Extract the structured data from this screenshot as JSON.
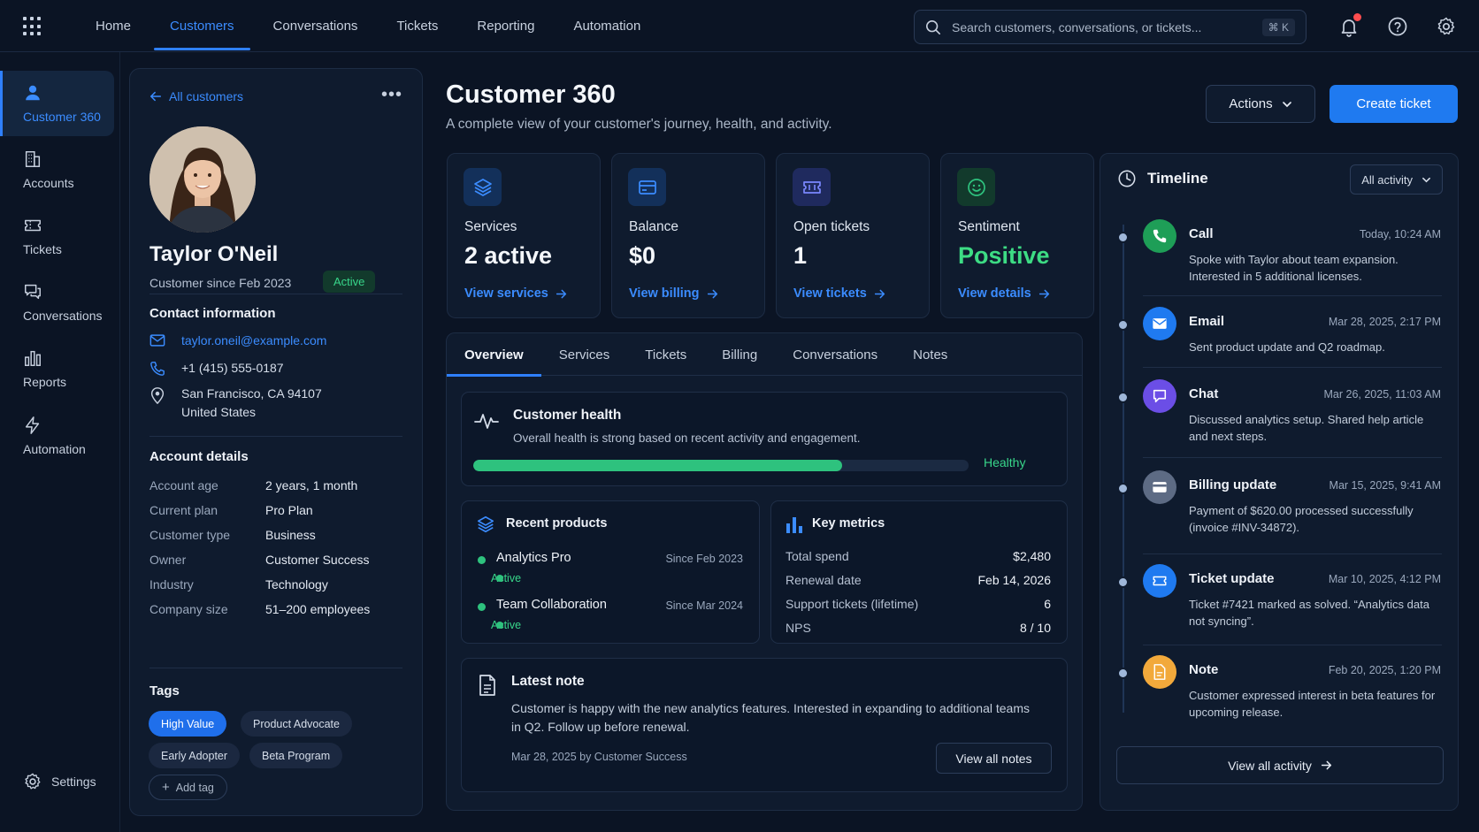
{
  "topnav": {
    "items": [
      "Home",
      "Customers",
      "Conversations",
      "Tickets",
      "Reporting",
      "Automation"
    ],
    "active": "Customers"
  },
  "search": {
    "placeholder": "Search customers, conversations, or tickets...",
    "shortcut": "⌘ K"
  },
  "rail": {
    "items": [
      {
        "label": "Customer 360",
        "icon": "user-icon"
      },
      {
        "label": "Accounts",
        "icon": "building-icon"
      },
      {
        "label": "Tickets",
        "icon": "ticket-icon"
      },
      {
        "label": "Conversations",
        "icon": "chat-icon"
      },
      {
        "label": "Reports",
        "icon": "bar-chart-icon"
      },
      {
        "label": "Automation",
        "icon": "lightning-icon"
      }
    ],
    "settings": "Settings"
  },
  "profile": {
    "back": "All customers",
    "name": "Taylor O'Neil",
    "since": "Customer since Feb 2023",
    "status": "Active",
    "contact_title": "Contact information",
    "email": "taylor.oneil@example.com",
    "phone": "+1 (415) 555-0187",
    "address_line1": "San Francisco, CA 94107",
    "address_line2": "United States",
    "account_title": "Account details",
    "details": [
      {
        "k": "Account age",
        "v": "2 years, 1 month"
      },
      {
        "k": "Current plan",
        "v": "Pro Plan"
      },
      {
        "k": "Customer type",
        "v": "Business"
      },
      {
        "k": "Owner",
        "v": "Customer Success"
      },
      {
        "k": "Industry",
        "v": "Technology"
      },
      {
        "k": "Company size",
        "v": "51–200 employees"
      }
    ],
    "tags_title": "Tags",
    "tags": [
      "High Value",
      "Product Advocate",
      "Early Adopter",
      "Beta Program"
    ],
    "add_tag": "Add tag"
  },
  "header": {
    "title": "Customer 360",
    "subtitle": "A complete view of your customer's journey, health, and activity.",
    "actions": "Actions",
    "create": "Create ticket"
  },
  "stats": [
    {
      "label": "Services",
      "value": "2 active",
      "link": "View services",
      "icon": "layers-icon",
      "color": "#3b8cff"
    },
    {
      "label": "Balance",
      "value": "$0",
      "link": "View billing",
      "icon": "credit-card-icon",
      "color": "#3b8cff"
    },
    {
      "label": "Open tickets",
      "value": "1",
      "link": "View tickets",
      "icon": "ticket-icon",
      "color": "#6d7bff"
    },
    {
      "label": "Sentiment",
      "value": "Positive",
      "link": "View details",
      "icon": "smile-icon",
      "color": "#2ec27e"
    }
  ],
  "tabs": [
    "Overview",
    "Services",
    "Tickets",
    "Billing",
    "Conversations",
    "Notes"
  ],
  "health": {
    "title": "Customer health",
    "subtitle": "Overall health is strong based on recent activity and engagement.",
    "status": "Healthy",
    "progress": 0.745
  },
  "products": {
    "title": "Recent products",
    "items": [
      {
        "name": "Analytics Pro",
        "since": "Since Feb 2023",
        "status": "Active"
      },
      {
        "name": "Team Collaboration",
        "since": "Since Mar 2024",
        "status": "Active"
      }
    ]
  },
  "metrics": {
    "title": "Key metrics",
    "items": [
      {
        "k": "Total spend",
        "v": "$2,480"
      },
      {
        "k": "Renewal date",
        "v": "Feb 14, 2026"
      },
      {
        "k": "Support tickets (lifetime)",
        "v": "6"
      },
      {
        "k": "NPS",
        "v": "8 / 10"
      }
    ]
  },
  "note": {
    "title": "Latest note",
    "body": "Customer is happy with the new analytics features. Interested in expanding to additional teams in Q2. Follow up before renewal.",
    "meta": "Mar 28, 2025 by Customer Success",
    "button": "View all notes"
  },
  "timeline": {
    "title": "Timeline",
    "filter": "All activity",
    "items": [
      {
        "type": "Call",
        "time": "Today, 10:24 AM",
        "desc": "Spoke with Taylor about team expansion. Interested in 5 additional licenses.",
        "icon": "phone-icon",
        "color": "#1e9e57"
      },
      {
        "type": "Email",
        "time": "Mar 28, 2025, 2:17 PM",
        "desc": "Sent product update and Q2 roadmap.",
        "icon": "mail-icon",
        "color": "#1f7af0"
      },
      {
        "type": "Chat",
        "time": "Mar 26, 2025, 11:03 AM",
        "desc": "Discussed analytics setup. Shared help article and next steps.",
        "icon": "chat-icon",
        "color": "#6b4ee6"
      },
      {
        "type": "Billing update",
        "time": "Mar 15, 2025, 9:41 AM",
        "desc": "Payment of $620.00 processed successfully (invoice #INV-34872).",
        "icon": "card-icon",
        "color": "#5d6b84"
      },
      {
        "type": "Ticket update",
        "time": "Mar 10, 2025, 4:12 PM",
        "desc": "Ticket #7421 marked as solved. “Analytics data not syncing”.",
        "icon": "ticket-icon",
        "color": "#1f7af0"
      },
      {
        "type": "Note",
        "time": "Feb 20, 2025, 1:20 PM",
        "desc": "Customer expressed interest in beta features for upcoming release.",
        "icon": "note-icon",
        "color": "#f2a93b"
      }
    ],
    "all": "View all activity"
  }
}
